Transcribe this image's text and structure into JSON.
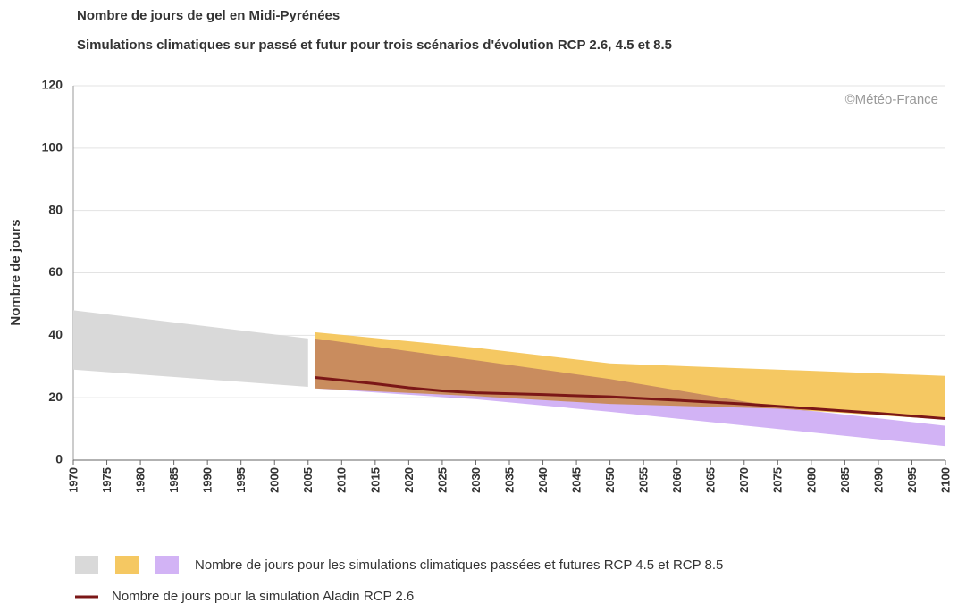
{
  "chart_data": {
    "type": "line",
    "title": "Nombre de jours de gel en Midi-Pyrénées",
    "subtitle": "Simulations climatiques sur passé et futur pour trois scénarios d'évolution RCP 2.6, 4.5 et 8.5",
    "y_label": "Nombre de jours",
    "annotation": "©Météo-France",
    "xlim": [
      1970,
      2100
    ],
    "xticks": [
      1970,
      1975,
      1980,
      1985,
      1990,
      1995,
      2000,
      2005,
      2010,
      2015,
      2020,
      2025,
      2030,
      2035,
      2040,
      2045,
      2050,
      2055,
      2060,
      2065,
      2070,
      2075,
      2080,
      2085,
      2090,
      2095,
      2100
    ],
    "ylim": [
      0,
      120
    ],
    "yticks": [
      0,
      20,
      40,
      60,
      80,
      100,
      120
    ],
    "grid": true,
    "bands": [
      {
        "color": "#d9d9d9",
        "x": [
          1970,
          2005
        ],
        "upper": [
          48,
          39
        ],
        "lower": [
          29,
          23.5
        ]
      },
      {
        "color": "#f5c862",
        "x": [
          2006,
          2030,
          2050,
          2075,
          2100
        ],
        "upper": [
          41,
          36,
          31,
          29,
          27
        ],
        "lower": [
          23,
          20.5,
          18,
          16.5,
          13
        ]
      },
      {
        "color": "#d2b3f5",
        "x": [
          2006,
          2030,
          2050,
          2075,
          2100
        ],
        "upper": [
          39,
          32,
          26,
          17,
          11
        ],
        "lower": [
          23,
          19.5,
          15.5,
          10,
          4.5
        ]
      }
    ],
    "series": [
      {
        "name": "Nombre de jours pour la simulation Aladin RCP 2.6",
        "color": "#7b1717",
        "x": [
          2006,
          2015,
          2020,
          2025,
          2030,
          2040,
          2050,
          2060,
          2070,
          2080,
          2090,
          2100
        ],
        "values": [
          26.5,
          24.5,
          23.2,
          22.2,
          21.6,
          21,
          20.3,
          19.2,
          18,
          16.5,
          15,
          13.3
        ]
      }
    ],
    "band_legend": "Nombre de jours pour les simulations climatiques passées et futures RCP 4.5 et RCP 8.5"
  }
}
